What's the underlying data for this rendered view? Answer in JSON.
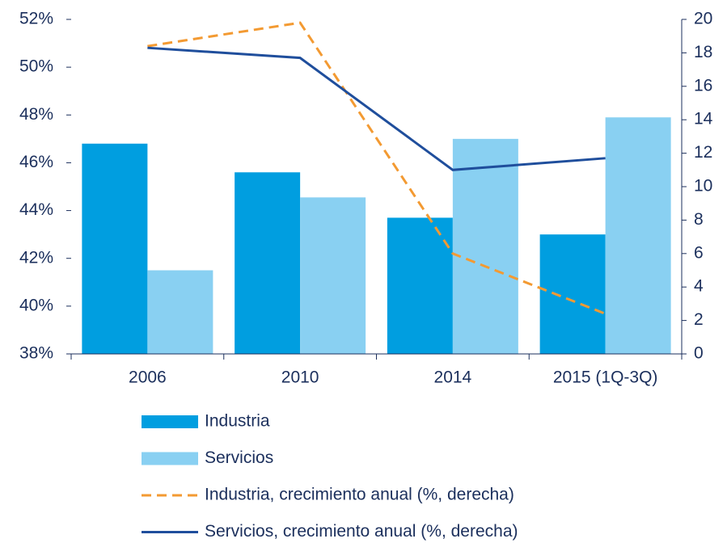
{
  "chart_data": {
    "type": "bar",
    "categories": [
      "2006",
      "2010",
      "2014",
      "2015 (1Q-3Q)"
    ],
    "series": [
      {
        "name": "Industria",
        "type": "bar",
        "color": "#009ee0",
        "values": [
          46.8,
          45.6,
          43.7,
          43.0
        ]
      },
      {
        "name": "Servicios",
        "type": "bar",
        "color": "#89d0f2",
        "values": [
          41.5,
          44.55,
          47.0,
          47.9
        ]
      },
      {
        "name": "Industria, crecimiento anual (%, derecha)",
        "type": "line",
        "dashed": true,
        "axis": "y2",
        "color": "#f39a32",
        "values": [
          18.4,
          19.8,
          6.0,
          2.4
        ]
      },
      {
        "name": "Servicios, crecimiento anual (%, derecha)",
        "type": "line",
        "dashed": false,
        "axis": "y2",
        "color": "#1f4e9c",
        "values": [
          18.3,
          17.7,
          11.0,
          11.7
        ]
      }
    ],
    "ylim": [
      38,
      52
    ],
    "yticks": [
      {
        "value": 38,
        "label": "38%"
      },
      {
        "value": 40,
        "label": "40%"
      },
      {
        "value": 42,
        "label": "42%"
      },
      {
        "value": 44,
        "label": "44%"
      },
      {
        "value": 46,
        "label": "46%"
      },
      {
        "value": 48,
        "label": "48%"
      },
      {
        "value": 50,
        "label": "50%"
      },
      {
        "value": 52,
        "label": "52%"
      }
    ],
    "y2lim": [
      0,
      20
    ],
    "y2ticks": [
      0,
      2,
      4,
      6,
      8,
      10,
      12,
      14,
      16,
      18,
      20
    ],
    "grid": false,
    "legend": "bottom"
  }
}
